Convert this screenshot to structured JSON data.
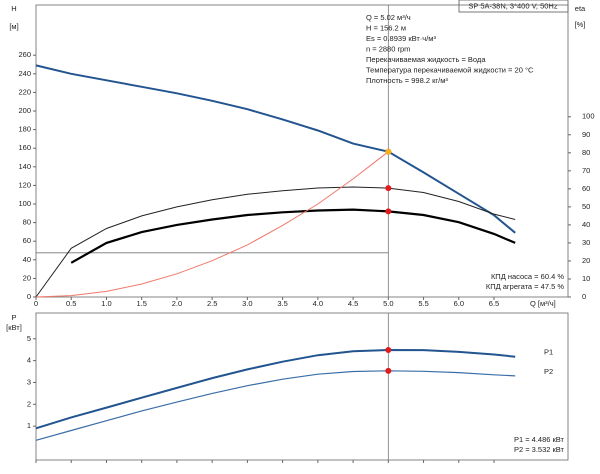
{
  "chart_data": [
    {
      "type": "line",
      "title": "SP 5A-38N, 3*400 V, 50Hz",
      "info": [
        "Q = 5.02 м³/ч",
        "H = 156.2 м",
        "Es = 0.8939 кВт·ч/м³",
        "n = 2880 rpm",
        "Перекачиваемая жидкость = Вода",
        "Температура перекачиваемой жидкости = 20 °C",
        "Плотность = 998.2 кг/м³"
      ],
      "notes": [
        "КПД насоса = 60.4 %",
        "КПД агрегата = 47.5 %"
      ],
      "xlabel": "Q [м³/ч]",
      "ylabel": "H",
      "yunit": "[м]",
      "y2label": "eta",
      "y2unit": "[%]",
      "x": [
        0,
        0.5,
        1,
        1.5,
        2,
        2.5,
        3,
        3.5,
        4,
        4.5,
        5,
        5.5,
        6,
        6.5,
        6.8
      ],
      "xlim": [
        0,
        7.55
      ],
      "xticks": [
        0,
        0.5,
        {
          "value": 1,
          "label": "1.0"
        },
        1.5,
        {
          "value": 2,
          "label": "2.0"
        },
        2.5,
        {
          "value": 3,
          "label": "3.0"
        },
        3.5,
        {
          "value": 4,
          "label": "4.0"
        },
        4.5,
        {
          "value": 5,
          "label": "5.0"
        },
        5.5,
        {
          "value": 6,
          "label": "6.0"
        },
        6.5
      ],
      "ylim": [
        0,
        314
      ],
      "yticks": [
        0,
        20,
        40,
        60,
        80,
        100,
        120,
        140,
        160,
        180,
        200,
        220,
        240,
        260
      ],
      "y2lim": [
        0,
        162
      ],
      "y2ticks": [
        0,
        10,
        20,
        30,
        40,
        50,
        60,
        70,
        80,
        90,
        100
      ],
      "series": [
        {
          "color": "#22548f",
          "width": 2,
          "values": [
            249,
            240,
            233,
            226,
            219,
            211,
            202,
            191,
            179,
            165,
            156.2,
            134,
            111,
            88,
            69
          ]
        },
        {
          "color": "#222222",
          "width": 1,
          "axis": "y2",
          "values": [
            0,
            27,
            38,
            45,
            50,
            54,
            57,
            59,
            60.5,
            61,
            60.4,
            58,
            53,
            46,
            43
          ]
        },
        {
          "color": "#000000",
          "width": 2.2,
          "axis": "y2",
          "values": [
            null,
            19,
            30,
            36,
            40,
            43,
            45.5,
            47,
            48,
            48.5,
            47.5,
            45.5,
            41.5,
            35,
            30
          ]
        },
        {
          "color": "#f07868",
          "width": 1,
          "values": [
            0,
            1.5,
            6,
            14,
            25,
            39,
            56,
            77,
            100,
            127,
            156.2,
            null,
            null,
            null,
            null
          ]
        }
      ]
    },
    {
      "type": "line",
      "notes": [
        "P1 = 4.486 кВт",
        "P2 = 3.532 кВт"
      ],
      "ylabel": "P",
      "yunit": "[кВт]",
      "x": [
        0,
        0.5,
        1,
        1.5,
        2,
        2.5,
        3,
        3.5,
        4,
        4.5,
        5,
        5.5,
        6,
        6.5,
        6.8
      ],
      "xlim": [
        0,
        7.55
      ],
      "ylim": [
        -0.55,
        6.18
      ],
      "yticks": [
        1,
        2,
        3,
        4,
        5
      ],
      "series": [
        {
          "name": "P1",
          "color": "#22548f",
          "width": 2,
          "values": [
            0.9,
            1.4,
            1.85,
            2.3,
            2.75,
            3.2,
            3.6,
            3.95,
            4.25,
            4.43,
            4.486,
            4.48,
            4.4,
            4.28,
            4.18
          ]
        },
        {
          "name": "P2",
          "color": "#3a6ea8",
          "width": 1.2,
          "values": [
            0.35,
            0.8,
            1.25,
            1.7,
            2.1,
            2.5,
            2.85,
            3.15,
            3.38,
            3.5,
            3.532,
            3.51,
            3.45,
            3.35,
            3.3
          ]
        }
      ]
    }
  ]
}
